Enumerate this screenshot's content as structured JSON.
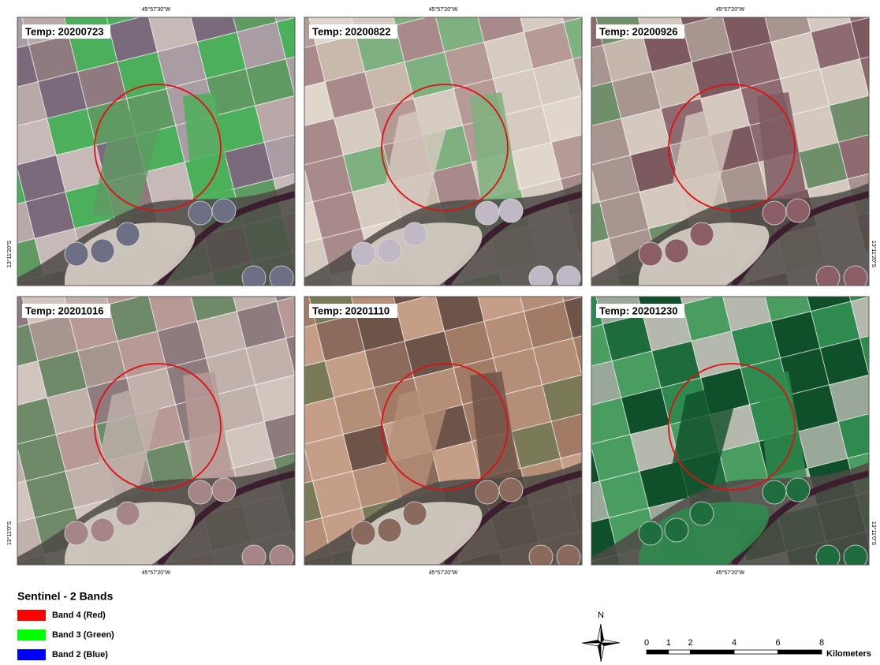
{
  "panels": [
    "Temp: 20200723",
    "Temp: 20200822",
    "Temp: 20200926",
    "Temp: 20201016",
    "Temp: 20201110",
    "Temp: 20201230"
  ],
  "top_labels": [
    "45°57'30\"W",
    "45°57'20\"W",
    "45°57'20\"W"
  ],
  "bottom_labels": [
    "45°57'20\"W",
    "45°57'20\"W",
    "45°57'20\"W"
  ],
  "left_labels": [
    "13°11'20\"S",
    "13°11'0\"S"
  ],
  "right_labels": [
    "13°11'20\"S",
    "13°11'0\"S"
  ],
  "legend": {
    "title": "Sentinel - 2 Bands",
    "items": [
      {
        "label": "Band 4 (Red)",
        "color": "#ff0000"
      },
      {
        "label": "Band 3 (Green)",
        "color": "#00ff00"
      },
      {
        "label": "Band 2 (Blue)",
        "color": "#0000ff"
      }
    ]
  },
  "north": "N",
  "scale": {
    "ticks": [
      0,
      1,
      2,
      4,
      6,
      8
    ],
    "unit": "Kilometers"
  }
}
